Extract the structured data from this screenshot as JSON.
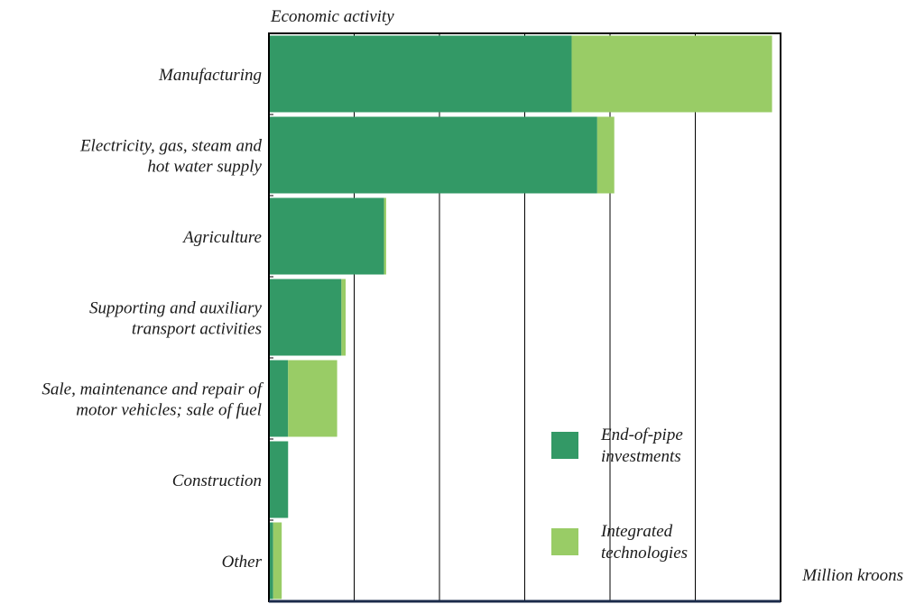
{
  "chart_data": {
    "type": "bar",
    "orientation": "horizontal",
    "stacked": true,
    "ylabel": "Economic activity",
    "xlabel": "Million kroons",
    "xlim": [
      0,
      120
    ],
    "xticks": [
      "0",
      "20",
      "40",
      "60",
      "80",
      "100",
      "120"
    ],
    "grid": "vertical",
    "legend_position": "bottom-right",
    "categories": [
      [
        "Manufacturing"
      ],
      [
        "Electricity, gas, steam and",
        "hot water supply"
      ],
      [
        "Agriculture"
      ],
      [
        "Supporting and auxiliary",
        "transport activities"
      ],
      [
        "Sale, maintenance and repair of",
        "motor vehicles; sale of fuel"
      ],
      [
        "Construction"
      ],
      [
        "Other"
      ]
    ],
    "series": [
      {
        "name": [
          "End-of-pipe",
          "investments"
        ],
        "color": "#339966",
        "values": [
          71,
          77,
          27,
          17,
          4.5,
          4.5,
          1
        ]
      },
      {
        "name": [
          "Integrated",
          "technologies"
        ],
        "color": "#99cc66",
        "values": [
          47,
          4,
          0.5,
          1,
          11.5,
          0,
          2
        ]
      }
    ]
  }
}
